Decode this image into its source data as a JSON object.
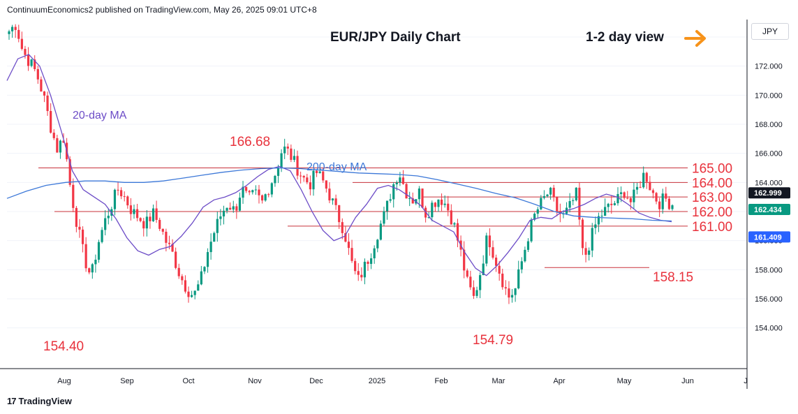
{
  "header": {
    "published": "ContinuumEconomics2 published on TradingView.com, May 26, 2025 09:01 UTC+8",
    "title": "EUR/JPY Daily Chart",
    "view": "1-2 day view",
    "currency_button": "JPY"
  },
  "footer": {
    "brand": "TradingView",
    "brand_logo": "17"
  },
  "colors": {
    "up": "#089981",
    "down": "#f23645",
    "level_line": "#c8303a",
    "ma20": "#6c4cc7",
    "ma200": "#3c78d8",
    "arrow": "#f7931a",
    "badge_dark": "#131722",
    "badge_green": "#089981",
    "badge_blue": "#2962ff"
  },
  "annotations": {
    "ma20_label": "20-day MA",
    "ma200_label": "200-day MA",
    "high_oct": "166.68",
    "low_aug": "154.40",
    "low_feb": "154.79",
    "level_158": "158.15"
  },
  "chart_data": {
    "type": "candlestick",
    "title": "EUR/JPY Daily Chart",
    "x_tick_labels": [
      "Aug",
      "Sep",
      "Oct",
      "Nov",
      "Dec",
      "2025",
      "Feb",
      "Mar",
      "Apr",
      "May",
      "Jun",
      "J"
    ],
    "y_tick_labels": [
      "154.000",
      "156.000",
      "158.000",
      "160.000",
      "162.000",
      "164.000",
      "166.000",
      "168.000",
      "170.000",
      "172.000",
      "174.000"
    ],
    "ylim": [
      151.2,
      175.2
    ],
    "horizontal_levels": [
      {
        "value": 165.0,
        "label": "165.00"
      },
      {
        "value": 164.0,
        "label": "164.00"
      },
      {
        "value": 163.0,
        "label": "163.00"
      },
      {
        "value": 162.0,
        "label": "162.00"
      },
      {
        "value": 161.0,
        "label": "161.00"
      },
      {
        "value": 158.15,
        "label": "158.15"
      }
    ],
    "price_badges": [
      {
        "value": 162.999,
        "label": "162.999",
        "style": "dark"
      },
      {
        "value": 162.434,
        "label": "162.434",
        "style": "green"
      },
      {
        "value": 161.409,
        "label": "161.409",
        "style": "blue"
      }
    ],
    "key_points": [
      {
        "label": "154.40",
        "value": 154.4
      },
      {
        "label": "166.68",
        "value": 166.68
      },
      {
        "label": "154.79",
        "value": 154.79
      },
      {
        "label": "158.15",
        "value": 158.15
      }
    ],
    "series_close_anchors": [
      174.4,
      174.9,
      173.0,
      172.3,
      171.5,
      170.0,
      168.0,
      166.3,
      167.1,
      163.5,
      161.0,
      158.8,
      157.5,
      159.8,
      161.3,
      162.5,
      163.6,
      162.9,
      162.0,
      161.6,
      161.1,
      161.9,
      161.1,
      159.9,
      159.0,
      157.6,
      156.7,
      156.2,
      157.2,
      159.2,
      160.6,
      161.8,
      162.6,
      162.0,
      163.6,
      162.8,
      163.2,
      162.6,
      163.7,
      164.7,
      166.4,
      166.0,
      165.1,
      164.3,
      163.9,
      164.7,
      164.0,
      163.0,
      161.8,
      160.7,
      158.6,
      157.2,
      158.2,
      159.3,
      160.7,
      161.9,
      163.6,
      164.8,
      163.4,
      162.8,
      163.3,
      161.8,
      162.6,
      163.0,
      162.4,
      161.2,
      159.3,
      157.1,
      156.0,
      158.0,
      160.4,
      158.9,
      157.5,
      156.1,
      156.6,
      158.6,
      160.5,
      161.9,
      162.7,
      163.4,
      162.2,
      161.6,
      162.3,
      163.2,
      158.6,
      160.0,
      161.4,
      162.0,
      162.4,
      162.8,
      163.4,
      162.6,
      163.7,
      164.7,
      163.4,
      162.6,
      162.9,
      162.4
    ],
    "ma20": [
      171.0,
      172.5,
      172.8,
      172.0,
      170.0,
      167.5,
      164.8,
      163.5,
      163.0,
      162.5,
      161.5,
      160.2,
      159.3,
      159.0,
      159.4,
      159.6,
      160.3,
      161.2,
      162.3,
      162.8,
      163.0,
      163.3,
      163.8,
      164.4,
      164.9,
      165.1,
      164.8,
      163.5,
      162.0,
      160.7,
      160.0,
      160.3,
      161.6,
      162.5,
      163.6,
      163.8,
      163.5,
      163.0,
      162.4,
      161.4,
      161.0,
      160.6,
      159.2,
      158.1,
      157.6,
      158.3,
      159.2,
      160.2,
      161.4,
      161.6,
      161.5,
      162.0,
      162.2,
      162.5,
      162.9,
      163.2,
      163.0,
      162.5,
      161.9,
      161.6,
      161.4,
      161.3
    ],
    "ma200": [
      162.9,
      163.4,
      163.8,
      164.0,
      164.1,
      164.1,
      164.0,
      164.0,
      164.1,
      164.3,
      164.5,
      164.7,
      164.85,
      164.95,
      165.0,
      164.95,
      164.85,
      164.75,
      164.65,
      164.6,
      164.55,
      164.45,
      164.2,
      163.9,
      163.6,
      163.25,
      162.95,
      162.5,
      162.0,
      161.7,
      161.6,
      161.55,
      161.5,
      161.4,
      161.35
    ]
  }
}
